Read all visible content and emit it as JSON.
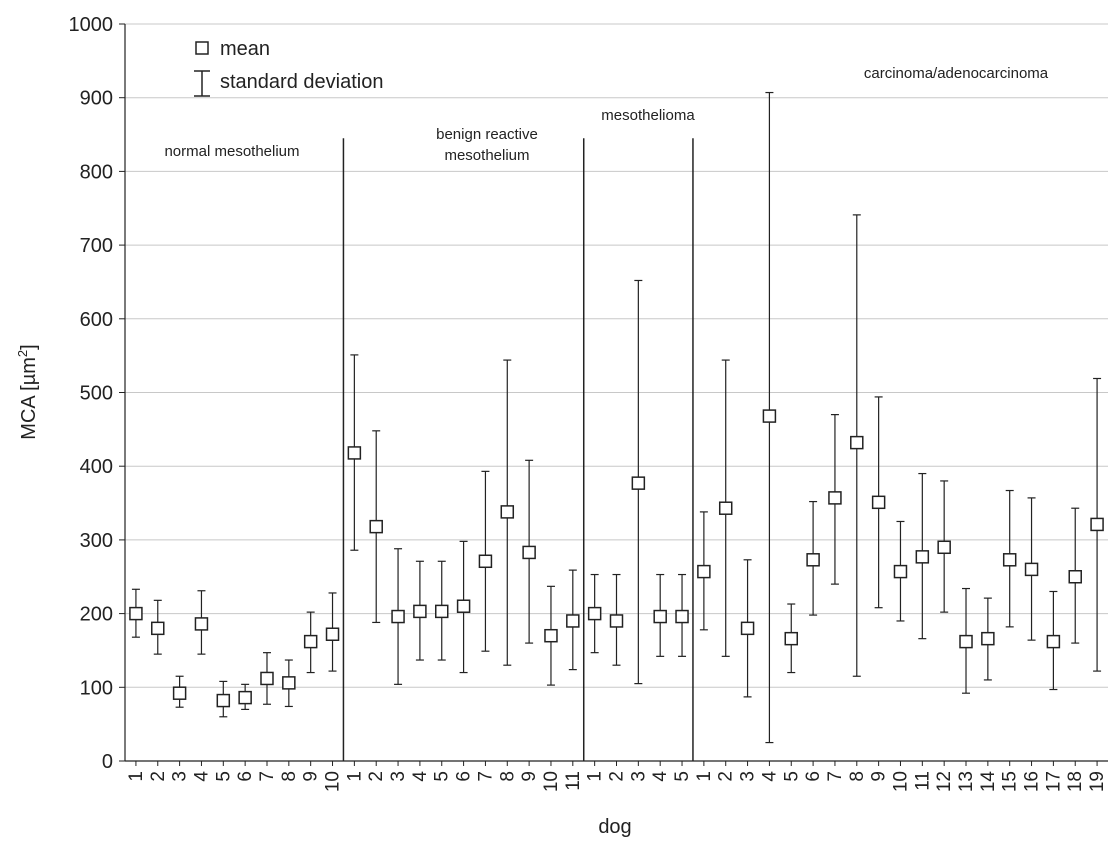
{
  "chart_data": {
    "type": "scatter",
    "xlabel": "dog",
    "ylabel": "MCA [µm²]",
    "ylabel_base": "MCA [µm",
    "ylabel_sup": "2",
    "ylabel_tail": "]",
    "ylim": [
      0,
      1000
    ],
    "yticks": [
      "0",
      "100",
      "200",
      "300",
      "400",
      "500",
      "600",
      "700",
      "800",
      "900",
      "1000"
    ],
    "grid": "horizontal",
    "legend": {
      "position": "top-left",
      "mean_label": "mean",
      "sd_label": "standard deviation"
    },
    "groups": [
      {
        "label_lines": [
          "normal mesothelium"
        ],
        "categories": [
          "1",
          "2",
          "3",
          "4",
          "5",
          "6",
          "7",
          "8",
          "9",
          "10"
        ],
        "mean": [
          200,
          180,
          92,
          186,
          82,
          86,
          112,
          106,
          162,
          172
        ],
        "low": [
          168,
          145,
          73,
          145,
          60,
          70,
          77,
          74,
          120,
          122
        ],
        "high": [
          233,
          218,
          115,
          231,
          108,
          104,
          147,
          137,
          202,
          228
        ]
      },
      {
        "label_lines": [
          "benign reactive",
          "mesothelium"
        ],
        "categories": [
          "1",
          "2",
          "3",
          "4",
          "5",
          "6",
          "7",
          "8",
          "9",
          "10",
          "11"
        ],
        "mean": [
          418,
          318,
          196,
          203,
          203,
          210,
          271,
          338,
          283,
          170,
          190
        ],
        "low": [
          286,
          188,
          104,
          137,
          137,
          120,
          149,
          130,
          160,
          103,
          124
        ],
        "high": [
          551,
          448,
          288,
          271,
          271,
          298,
          393,
          544,
          408,
          237,
          259
        ]
      },
      {
        "label_lines": [
          "mesothelioma"
        ],
        "categories": [
          "1",
          "2",
          "3",
          "4",
          "5"
        ],
        "mean": [
          200,
          190,
          377,
          196,
          196
        ],
        "low": [
          147,
          130,
          105,
          142,
          142
        ],
        "high": [
          253,
          253,
          652,
          253,
          253
        ]
      },
      {
        "label_lines": [
          "carcinoma/adenocarcinoma"
        ],
        "categories": [
          "1",
          "2",
          "3",
          "4",
          "5",
          "6",
          "7",
          "8",
          "9",
          "10",
          "11",
          "12",
          "13",
          "14",
          "15",
          "16",
          "17",
          "18",
          "19"
        ],
        "mean": [
          257,
          343,
          180,
          468,
          166,
          273,
          357,
          432,
          351,
          257,
          277,
          290,
          162,
          166,
          273,
          260,
          162,
          250,
          321
        ],
        "low": [
          178,
          142,
          87,
          25,
          120,
          198,
          240,
          115,
          208,
          190,
          166,
          202,
          92,
          110,
          182,
          164,
          97,
          160,
          122
        ],
        "high": [
          338,
          544,
          273,
          907,
          213,
          352,
          470,
          741,
          494,
          325,
          390,
          380,
          234,
          221,
          367,
          357,
          230,
          343,
          519
        ]
      }
    ]
  }
}
